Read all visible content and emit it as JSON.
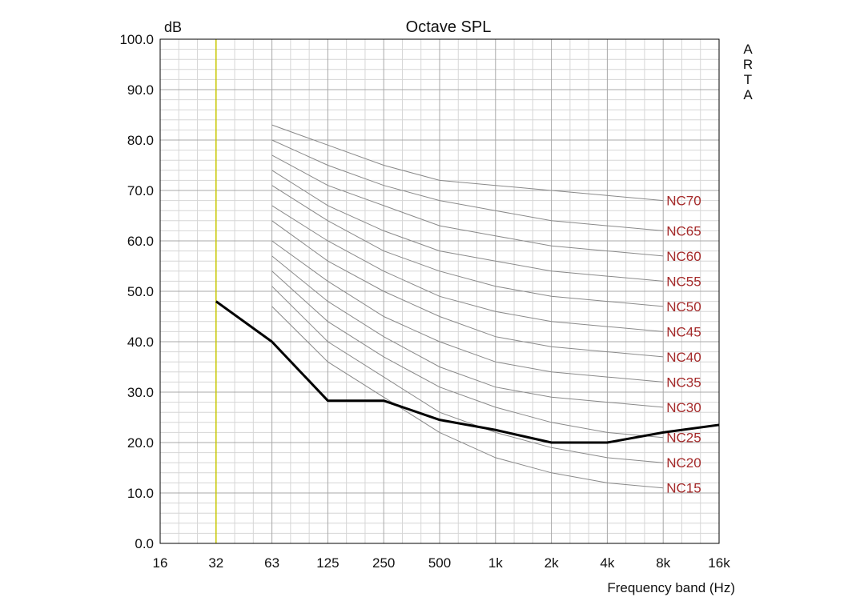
{
  "chart_data": {
    "type": "line",
    "title": "Octave SPL",
    "ylabel": "dB",
    "xlabel": "Frequency band (Hz)",
    "side_label": "ARTA",
    "x_categories": [
      "16",
      "32",
      "63",
      "125",
      "250",
      "500",
      "1k",
      "2k",
      "4k",
      "8k",
      "16k"
    ],
    "ylim": [
      0,
      100
    ],
    "y_ticks": [
      "0.0",
      "10.0",
      "20.0",
      "30.0",
      "40.0",
      "50.0",
      "60.0",
      "70.0",
      "80.0",
      "90.0",
      "100.0"
    ],
    "grid": true,
    "marker_band": "32",
    "measured_series": {
      "x": [
        "32",
        "63",
        "125",
        "250",
        "500",
        "1k",
        "2k",
        "4k",
        "8k",
        "16k"
      ],
      "values": [
        48.0,
        40.0,
        28.3,
        28.3,
        24.5,
        22.5,
        20.0,
        20.0,
        22.0,
        23.5
      ]
    },
    "nc_curves": [
      {
        "name": "NC70",
        "x": [
          "63",
          "125",
          "250",
          "500",
          "1k",
          "2k",
          "4k",
          "8k"
        ],
        "values": [
          83,
          79,
          75,
          72,
          71,
          70,
          69,
          68
        ]
      },
      {
        "name": "NC65",
        "x": [
          "63",
          "125",
          "250",
          "500",
          "1k",
          "2k",
          "4k",
          "8k"
        ],
        "values": [
          80,
          75,
          71,
          68,
          66,
          64,
          63,
          62
        ]
      },
      {
        "name": "NC60",
        "x": [
          "63",
          "125",
          "250",
          "500",
          "1k",
          "2k",
          "4k",
          "8k"
        ],
        "values": [
          77,
          71,
          67,
          63,
          61,
          59,
          58,
          57
        ]
      },
      {
        "name": "NC55",
        "x": [
          "63",
          "125",
          "250",
          "500",
          "1k",
          "2k",
          "4k",
          "8k"
        ],
        "values": [
          74,
          67,
          62,
          58,
          56,
          54,
          53,
          52
        ]
      },
      {
        "name": "NC50",
        "x": [
          "63",
          "125",
          "250",
          "500",
          "1k",
          "2k",
          "4k",
          "8k"
        ],
        "values": [
          71,
          64,
          58,
          54,
          51,
          49,
          48,
          47
        ]
      },
      {
        "name": "NC45",
        "x": [
          "63",
          "125",
          "250",
          "500",
          "1k",
          "2k",
          "4k",
          "8k"
        ],
        "values": [
          67,
          60,
          54,
          49,
          46,
          44,
          43,
          42
        ]
      },
      {
        "name": "NC40",
        "x": [
          "63",
          "125",
          "250",
          "500",
          "1k",
          "2k",
          "4k",
          "8k"
        ],
        "values": [
          64,
          56,
          50,
          45,
          41,
          39,
          38,
          37
        ]
      },
      {
        "name": "NC35",
        "x": [
          "63",
          "125",
          "250",
          "500",
          "1k",
          "2k",
          "4k",
          "8k"
        ],
        "values": [
          60,
          52,
          45,
          40,
          36,
          34,
          33,
          32
        ]
      },
      {
        "name": "NC30",
        "x": [
          "63",
          "125",
          "250",
          "500",
          "1k",
          "2k",
          "4k",
          "8k"
        ],
        "values": [
          57,
          48,
          41,
          35,
          31,
          29,
          28,
          27
        ]
      },
      {
        "name": "NC25",
        "x": [
          "63",
          "125",
          "250",
          "500",
          "1k",
          "2k",
          "4k",
          "8k"
        ],
        "values": [
          54,
          44,
          37,
          31,
          27,
          24,
          22,
          21
        ]
      },
      {
        "name": "NC20",
        "x": [
          "63",
          "125",
          "250",
          "500",
          "1k",
          "2k",
          "4k",
          "8k"
        ],
        "values": [
          51,
          40,
          33,
          26,
          22,
          19,
          17,
          16
        ]
      },
      {
        "name": "NC15",
        "x": [
          "63",
          "125",
          "250",
          "500",
          "1k",
          "2k",
          "4k",
          "8k"
        ],
        "values": [
          47,
          36,
          29,
          22,
          17,
          14,
          12,
          11
        ]
      }
    ],
    "colors": {
      "grid_major": "#a8a8a8",
      "grid_minor": "#d6d6d6",
      "nc_curve": "#8a8a8a",
      "nc_label": "#a52a2a",
      "measured": "#000000",
      "marker": "#c8c800",
      "frame": "#000000"
    }
  }
}
